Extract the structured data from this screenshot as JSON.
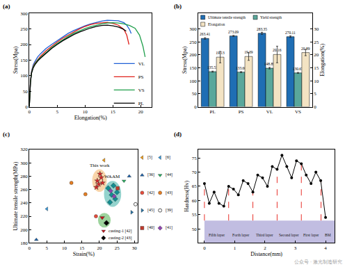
{
  "chart_data": [
    {
      "type": "line",
      "title": "(a)",
      "x_label": "Elongation(%)",
      "y_label": "Stress(Mpa)",
      "xlim": [
        0,
        22
      ],
      "xticks": [
        0,
        5,
        10,
        15,
        20
      ],
      "ylim": [
        0,
        300
      ],
      "yticks": [
        0,
        50,
        100,
        150,
        200,
        250,
        300
      ],
      "series": [
        {
          "name": "VL",
          "color": "#1f5fd6",
          "x": [
            0,
            0.2,
            0.4,
            0.7,
            1,
            1.5,
            2,
            3,
            4,
            5,
            6,
            7,
            8,
            9,
            10,
            11,
            12,
            13,
            14,
            15,
            16,
            17,
            17.5,
            18,
            18.3
          ],
          "values": [
            0,
            80,
            115,
            135,
            145,
            160,
            170,
            187,
            200,
            212,
            225,
            236,
            245,
            253,
            260,
            266,
            271,
            275,
            278,
            277,
            276,
            270,
            262,
            248,
            235
          ]
        },
        {
          "name": "PS",
          "color": "#e0201b",
          "x": [
            0,
            0.2,
            0.4,
            0.7,
            1,
            1.5,
            2,
            3,
            4,
            5,
            6,
            7,
            8,
            9,
            10,
            11,
            12,
            13,
            14,
            15,
            16,
            17,
            17.5,
            17.9
          ],
          "values": [
            0,
            80,
            112,
            130,
            140,
            152,
            162,
            180,
            195,
            208,
            220,
            230,
            240,
            250,
            258,
            264,
            268,
            270,
            271,
            268,
            262,
            248,
            230,
            200
          ]
        },
        {
          "name": "VS",
          "color": "#1e9e4a",
          "x": [
            0,
            0.2,
            0.4,
            0.7,
            1,
            1.5,
            2,
            3,
            4,
            5,
            6,
            7,
            8,
            9,
            10,
            11,
            12,
            13,
            14,
            15,
            16,
            17,
            18,
            19,
            19.8,
            20.4,
            20.8
          ],
          "values": [
            0,
            78,
            110,
            128,
            138,
            150,
            158,
            175,
            190,
            203,
            215,
            226,
            236,
            244,
            251,
            257,
            262,
            266,
            269,
            270,
            269,
            266,
            261,
            252,
            230,
            195,
            160
          ]
        },
        {
          "name": "PL",
          "color": "#000000",
          "x": [
            0,
            0.2,
            0.4,
            0.7,
            1,
            1.5,
            2,
            3,
            4,
            5,
            6,
            7,
            8,
            9,
            10,
            11,
            12,
            13,
            14,
            15,
            16,
            16.8,
            17.4
          ],
          "values": [
            0,
            78,
            108,
            125,
            135,
            147,
            156,
            172,
            187,
            200,
            212,
            222,
            232,
            240,
            247,
            253,
            258,
            261,
            262,
            260,
            256,
            250,
            243
          ]
        }
      ]
    },
    {
      "type": "bar",
      "title": "(b)",
      "categories": [
        "PL",
        "PS",
        "VL",
        "VS"
      ],
      "y_label": "Stress(Mpa)",
      "y2_label": "Elongation(%)",
      "ylim": [
        0,
        360
      ],
      "yticks": [
        0,
        50,
        100,
        150,
        200,
        250,
        300
      ],
      "y2lim": [
        0,
        36
      ],
      "y2ticks": [
        0,
        5,
        10,
        15,
        20,
        25,
        30
      ],
      "data_labels": true,
      "series": [
        {
          "name": "Ultimate tensile strength",
          "color": "#1f6eb4",
          "values": [
            263.41,
            273.09,
            283.35,
            270.11
          ],
          "errors": [
            3,
            2,
            4,
            3
          ]
        },
        {
          "name": "Yield strength",
          "color": "#5aa79b",
          "values": [
            135.53,
            133.66,
            148.89,
            130.67
          ],
          "errors": [
            2,
            2,
            3,
            2
          ]
        },
        {
          "name": "Elongation",
          "color": "#f3e3c3",
          "axis": "y2",
          "values": [
            19.13,
            19.39,
            20.16,
            20.89
          ],
          "errors": [
            2.2,
            1.5,
            3.2,
            1.2
          ]
        }
      ]
    },
    {
      "type": "scatter",
      "title": "(c)",
      "x_label": "Strain(%)",
      "y_label": "Ultimate tensile strength(MPa)",
      "xlim": [
        0,
        31
      ],
      "xticks": [
        0,
        5,
        10,
        15,
        20,
        25,
        30
      ],
      "ylim": [
        180,
        320
      ],
      "yticks": [
        180,
        200,
        220,
        240,
        260,
        280,
        300,
        320
      ],
      "series": [
        {
          "name": "[5]",
          "color": "#f39c12",
          "marker": "triangle-left",
          "x": [
            21.3
          ],
          "values": [
            304
          ]
        },
        {
          "name": "[6]",
          "color": "#3498db",
          "marker": "triangle-left",
          "x": [
            5
          ],
          "values": [
            231
          ]
        },
        {
          "name": "[36]",
          "color": "#1a5fa8",
          "marker": "triangle-up",
          "x": [
            2,
            28.5
          ],
          "values": [
            185,
            280
          ]
        },
        {
          "name": "[44]",
          "color": "#27ae60",
          "marker": "triangle-down",
          "x": [
            27
          ],
          "values": [
            273
          ]
        },
        {
          "name": "[42]",
          "color": "#e74c3c",
          "marker": "circle",
          "x": [
            19
          ],
          "values": [
            220
          ]
        },
        {
          "name": "[43]",
          "color": "#e67e22",
          "marker": "circle",
          "x": [
            12,
            16
          ],
          "values": [
            270,
            253
          ]
        },
        {
          "name": "[45]",
          "color": "#2471a3",
          "marker": "triangle-right",
          "x": [
            29.2
          ],
          "values": [
            226
          ]
        },
        {
          "name": "[39]",
          "color": "#555555",
          "marker": "circle-open",
          "x": [
            30.3
          ],
          "values": [
            238
          ]
        },
        {
          "name": "[40]",
          "color": "#c0392b",
          "marker": "square",
          "x": [
            25.2
          ],
          "values": [
            262
          ]
        },
        {
          "name": "[41]",
          "color": "#8e44ad",
          "marker": "diamond",
          "x": [
            23.2,
            24.2
          ],
          "values": [
            258,
            250
          ]
        }
      ],
      "highlights": [
        {
          "name": "This work",
          "color": "#d62728",
          "marker": "star",
          "region_color": "#f5b971",
          "x": [
            19.13,
            19.39,
            20.16,
            20.89,
            20.5,
            19.8
          ],
          "values": [
            263.41,
            273.09,
            283.35,
            270.11,
            278,
            268
          ]
        },
        {
          "name": "WAAM",
          "color": "#138d90",
          "marker": "diamond",
          "region_color": "#4db6ac",
          "x": [
            22.5,
            23.5,
            24.5,
            25,
            24,
            23
          ],
          "values": [
            262,
            252,
            246,
            256,
            266,
            241
          ]
        }
      ],
      "castings": {
        "region_color": "#5cb85c",
        "series": [
          {
            "name": "casting-1 [42]",
            "color": "#c0141c",
            "marker": "triangle-down",
            "x": [
              20.8
            ],
            "values": [
              218
            ]
          },
          {
            "name": "casting-2 [43]",
            "color": "#000000",
            "marker": "diamond",
            "x": [
              22
            ],
            "values": [
              210
            ]
          }
        ]
      }
    },
    {
      "type": "line",
      "title": "(d)",
      "x_label": "Distance(mm)",
      "y_label": "Hardness(Hv)",
      "xlim": [
        -0.2,
        4.3
      ],
      "xticks": [
        0,
        1,
        2,
        3,
        4
      ],
      "ylim": [
        45,
        78
      ],
      "yticks": [
        50,
        55,
        60,
        65,
        70,
        75
      ],
      "x": [
        0,
        0.16,
        0.32,
        0.48,
        0.64,
        0.8,
        0.96,
        1.12,
        1.28,
        1.44,
        1.6,
        1.76,
        1.92,
        2.08,
        2.24,
        2.4,
        2.56,
        2.72,
        2.88,
        3.04,
        3.2,
        3.36,
        3.52,
        3.68,
        3.84,
        4.0
      ],
      "series": [
        {
          "color": "#000000",
          "marker": "circle",
          "values": [
            66,
            59,
            63,
            59,
            58,
            65,
            64,
            62,
            67,
            66,
            63,
            69,
            68,
            65,
            72,
            71,
            76,
            72,
            68,
            74,
            73,
            69,
            66,
            70,
            67,
            54
          ]
        }
      ],
      "layers": {
        "color": "#e8302a",
        "items": [
          {
            "label": "Fifth layer",
            "from": 0,
            "to": 0.8
          },
          {
            "label": "Forth layer",
            "from": 0.8,
            "to": 1.6
          },
          {
            "label": "Third layer",
            "from": 1.6,
            "to": 2.4
          },
          {
            "label": "Second layer",
            "from": 2.4,
            "to": 3.2
          },
          {
            "label": "First layer",
            "from": 3.2,
            "to": 3.85
          },
          {
            "label": "BM",
            "from": 3.85,
            "to": 4.3
          }
        ]
      }
    }
  ],
  "watermark": "公众号 · 激光制造研究"
}
